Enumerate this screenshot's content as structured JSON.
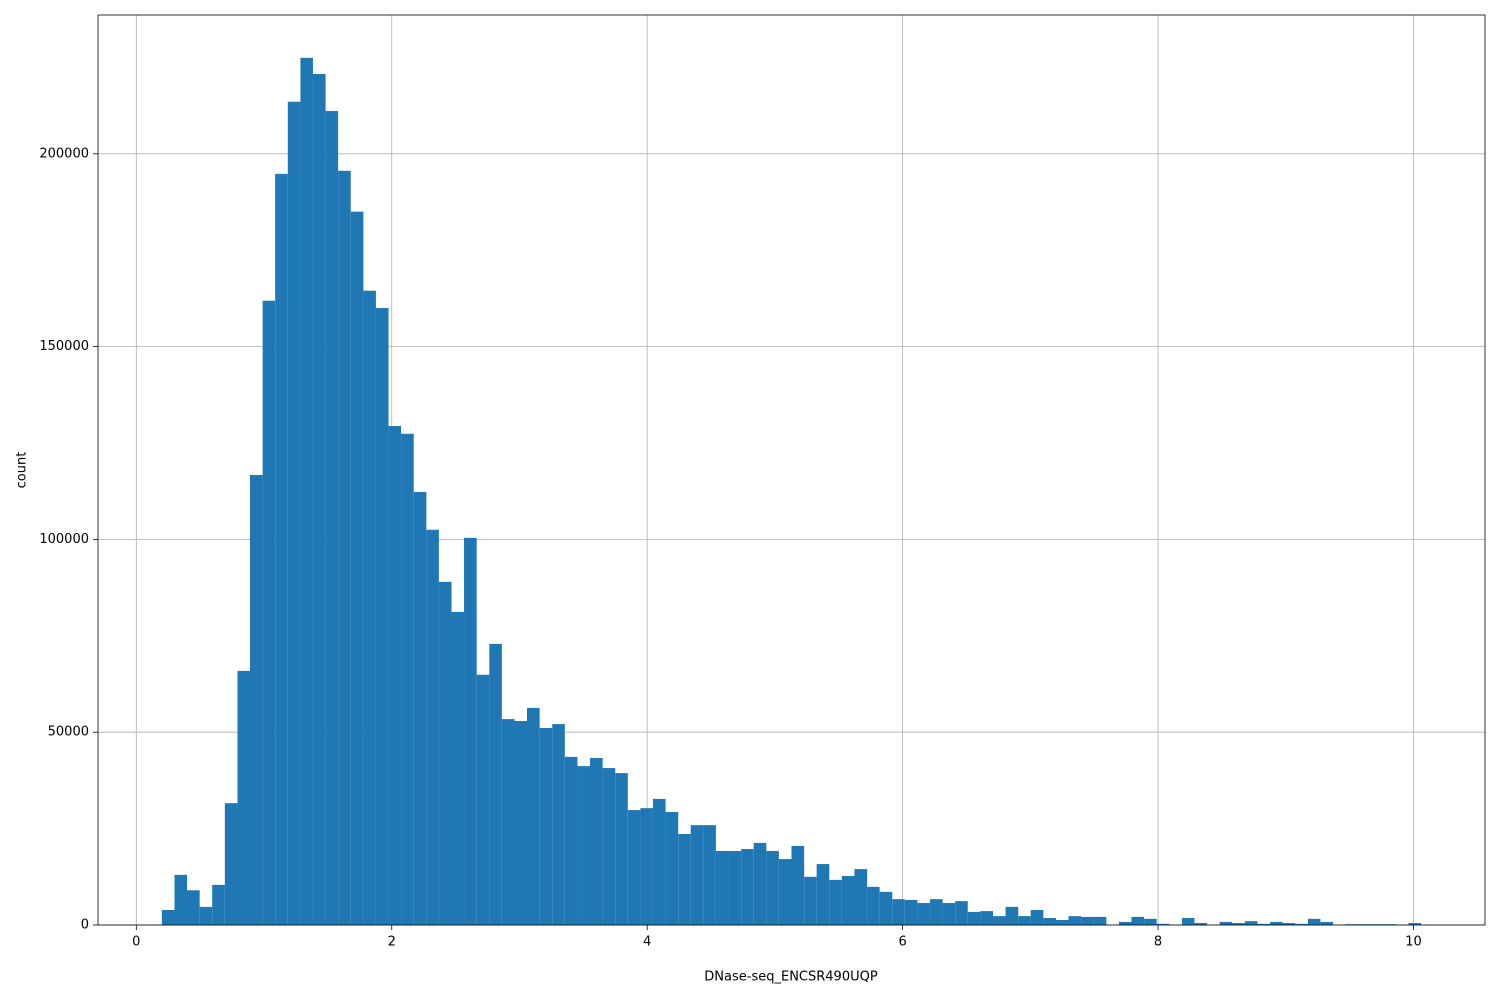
{
  "chart_data": {
    "type": "histogram",
    "xlabel": "DNase-seq_ENCSR490UQP",
    "ylabel": "count",
    "color": "#1f77b4",
    "grid": true,
    "xlim": [
      -0.3,
      10.56
    ],
    "ylim": [
      0,
      236000
    ],
    "xticks": [
      0,
      2,
      4,
      6,
      8,
      10
    ],
    "yticks": [
      0,
      50000,
      100000,
      150000,
      200000
    ],
    "bins": [
      0.2,
      0.299,
      0.397,
      0.496,
      0.594,
      0.693,
      0.792,
      0.89,
      0.989,
      1.087,
      1.186,
      1.285,
      1.383,
      1.482,
      1.58,
      1.679,
      1.778,
      1.876,
      1.975,
      2.073,
      2.172,
      2.271,
      2.369,
      2.468,
      2.566,
      2.665,
      2.764,
      2.862,
      2.961,
      3.059,
      3.158,
      3.257,
      3.355,
      3.454,
      3.552,
      3.651,
      3.75,
      3.848,
      3.947,
      4.045,
      4.144,
      4.243,
      4.341,
      4.44,
      4.538,
      4.637,
      4.736,
      4.834,
      4.933,
      5.031,
      5.13,
      5.229,
      5.327,
      5.426,
      5.524,
      5.623,
      5.722,
      5.82,
      5.919,
      6.017,
      6.116,
      6.215,
      6.313,
      6.412,
      6.51,
      6.609,
      6.708,
      6.806,
      6.905,
      7.003,
      7.102,
      7.201,
      7.299,
      7.398,
      7.496,
      7.595,
      7.694,
      7.792,
      7.891,
      7.989,
      8.088,
      8.187,
      8.285,
      8.384,
      8.482,
      8.581,
      8.68,
      8.778,
      8.877,
      8.975,
      9.074,
      9.173,
      9.271,
      9.37,
      9.468,
      9.567,
      9.666,
      9.764,
      9.863,
      9.961,
      10.06
    ],
    "values": [
      3900,
      13000,
      9000,
      4700,
      10400,
      31600,
      65900,
      116700,
      161900,
      194800,
      213500,
      224900,
      220700,
      211100,
      195600,
      185000,
      164500,
      160000,
      129400,
      127400,
      112300,
      102500,
      89000,
      81200,
      100400,
      64900,
      72900,
      53400,
      52900,
      56300,
      51100,
      52100,
      43600,
      41200,
      43300,
      40700,
      39400,
      29800,
      30300,
      32700,
      29300,
      23600,
      25900,
      25900,
      19200,
      19200,
      19700,
      21300,
      19200,
      17100,
      20500,
      12500,
      15800,
      11700,
      12700,
      14500,
      9900,
      8600,
      6700,
      6500,
      5700,
      6700,
      5700,
      6200,
      3400,
      3600,
      2300,
      4700,
      2300,
      3900,
      1800,
      1300,
      2300,
      2100,
      2100,
      0,
      800,
      2100,
      1600,
      300,
      0,
      1800,
      500,
      0,
      800,
      500,
      1000,
      300,
      800,
      500,
      300,
      1600,
      800,
      0,
      200,
      200,
      200,
      200,
      0,
      500
    ]
  }
}
